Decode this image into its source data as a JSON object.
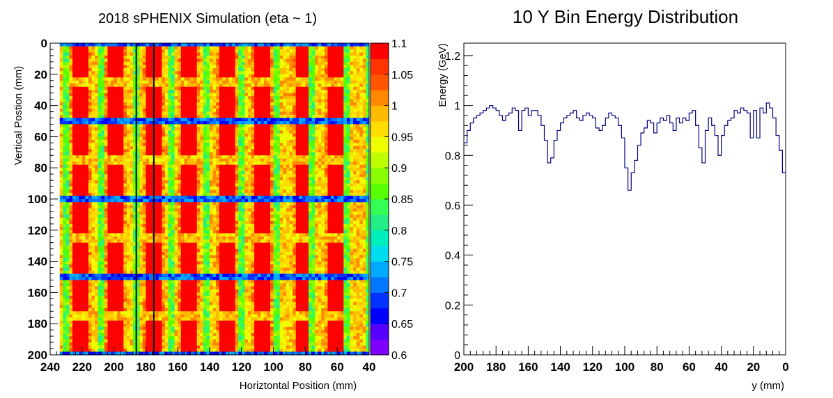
{
  "chart_data": [
    {
      "type": "heatmap",
      "title": "2018 sPHENIX Simulation (eta ~ 1)",
      "xlabel": "Horiztontal Position (mm)",
      "ylabel": "Vertical Postion (mm)",
      "xlim": [
        240,
        40
      ],
      "ylim": [
        200,
        0
      ],
      "x_ticks": [
        "240",
        "220",
        "200",
        "180",
        "160",
        "140",
        "120",
        "100",
        "80",
        "60",
        "40"
      ],
      "y_ticks": [
        "0",
        "20",
        "40",
        "60",
        "80",
        "100",
        "120",
        "140",
        "160",
        "180",
        "200"
      ],
      "colorbar": {
        "range": [
          0.6,
          1.1
        ],
        "ticks": [
          "1.1",
          "1.05",
          "1",
          "0.95",
          "0.9",
          "0.85",
          "0.8",
          "0.75",
          "0.7",
          "0.65",
          "0.6"
        ],
        "colors": [
          "#7f00ff",
          "#5500ff",
          "#0000ff",
          "#0033ff",
          "#0077ff",
          "#00aaff",
          "#00ddee",
          "#00eebb",
          "#22ee88",
          "#33ff55",
          "#55ff00",
          "#88ff00",
          "#bbff00",
          "#eeff00",
          "#ffdd00",
          "#ffbb00",
          "#ff8800",
          "#ff5500",
          "#ff3300",
          "#ff0000"
        ]
      },
      "tower_boundaries_x": [
        230,
        208,
        186,
        164,
        142,
        120,
        98,
        76,
        54,
        40
      ],
      "tower_boundaries_y": [
        0,
        50,
        100,
        150,
        200
      ],
      "hot_blob_centers_x": [
        221,
        199,
        175,
        153,
        129,
        107,
        82,
        61
      ],
      "vertical_markers_x": [
        186,
        175
      ]
    },
    {
      "type": "line",
      "title": "10 Y Bin Energy Distribution",
      "xlabel": "y (mm)",
      "ylabel": "Energy (GeV)",
      "xlim": [
        200,
        0
      ],
      "ylim": [
        0,
        1.25
      ],
      "x_ticks": [
        "200",
        "180",
        "160",
        "140",
        "120",
        "100",
        "80",
        "60",
        "40",
        "20",
        "0"
      ],
      "y_ticks": [
        "0",
        "0.2",
        "0.4",
        "0.6",
        "0.8",
        "1",
        "1.2"
      ],
      "series": [
        {
          "color": "#00007f",
          "x": [
            0,
            2,
            4,
            6,
            8,
            10,
            12,
            14,
            16,
            18,
            20,
            22,
            24,
            26,
            28,
            30,
            32,
            34,
            36,
            38,
            40,
            42,
            44,
            46,
            48,
            50,
            52,
            54,
            56,
            58,
            60,
            62,
            64,
            66,
            68,
            70,
            72,
            74,
            76,
            78,
            80,
            82,
            84,
            86,
            88,
            90,
            92,
            94,
            96,
            98,
            100,
            102,
            104,
            106,
            108,
            110,
            112,
            114,
            116,
            118,
            120,
            122,
            124,
            126,
            128,
            130,
            132,
            134,
            136,
            138,
            140,
            142,
            144,
            146,
            148,
            150,
            152,
            154,
            156,
            158,
            160,
            162,
            164,
            166,
            168,
            170,
            172,
            174,
            176,
            178,
            180,
            182,
            184,
            186,
            188,
            190,
            192,
            194,
            196,
            198
          ],
          "y": [
            0.73,
            0.82,
            0.88,
            0.95,
            0.99,
            1.01,
            0.97,
            0.99,
            0.87,
            0.98,
            0.87,
            0.97,
            0.98,
            0.99,
            0.97,
            0.98,
            0.95,
            0.94,
            0.92,
            0.88,
            0.8,
            0.88,
            0.92,
            0.95,
            0.9,
            0.77,
            0.83,
            0.92,
            0.98,
            0.97,
            0.94,
            0.95,
            0.93,
            0.95,
            0.9,
            0.93,
            0.96,
            0.94,
            0.95,
            0.93,
            0.89,
            0.93,
            0.94,
            0.91,
            0.89,
            0.84,
            0.78,
            0.73,
            0.66,
            0.75,
            0.87,
            0.92,
            0.95,
            0.96,
            0.97,
            0.95,
            0.92,
            0.9,
            0.91,
            0.95,
            0.96,
            0.97,
            0.96,
            0.94,
            0.95,
            0.98,
            0.97,
            0.96,
            0.95,
            0.93,
            0.9,
            0.86,
            0.79,
            0.77,
            0.86,
            0.92,
            0.96,
            0.98,
            0.98,
            0.96,
            0.99,
            0.98,
            0.9,
            0.98,
            0.99,
            0.97,
            0.96,
            0.94,
            0.96,
            0.98,
            0.99,
            1.0,
            0.99,
            0.98,
            0.97,
            0.96,
            0.95,
            0.93,
            0.9,
            0.85
          ]
        }
      ]
    }
  ]
}
